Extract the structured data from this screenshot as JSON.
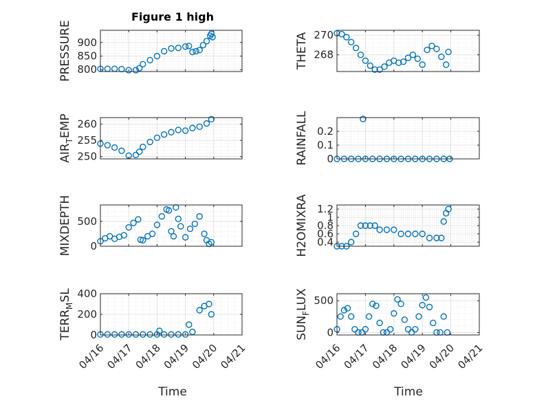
{
  "chart_data": [
    {
      "type": "scatter",
      "title": "Figure 1 high",
      "ylabel": "PRESSURE",
      "ylabel_parts": [
        {
          "t": "PRESSURE"
        }
      ],
      "yticks": [
        "800",
        "850",
        "900"
      ],
      "ytick_values": [
        800,
        850,
        900
      ],
      "ylim": [
        793,
        945
      ],
      "color": "#0072BD",
      "x": [
        "04/16 00:00",
        "04/16 06:00",
        "04/16 12:00",
        "04/16 18:00",
        "04/17 00:00",
        "04/17 06:00",
        "04/17 09:00",
        "04/17 12:00",
        "04/17 18:00",
        "04/18 00:00",
        "04/18 06:00",
        "04/18 12:00",
        "04/18 18:00",
        "04/19 00:00",
        "04/19 03:00",
        "04/19 06:00",
        "04/19 09:00",
        "04/19 12:00",
        "04/19 15:00",
        "04/19 18:00",
        "04/19 21:00",
        "04/19 22:00",
        "04/19 23:00"
      ],
      "y": [
        803,
        803,
        803,
        802,
        798,
        798,
        805,
        820,
        835,
        850,
        868,
        878,
        880,
        885,
        887,
        865,
        868,
        872,
        890,
        905,
        925,
        932,
        920
      ]
    },
    {
      "type": "scatter",
      "title": "",
      "ylabel": "THETA",
      "ylabel_parts": [
        {
          "t": "THETA"
        }
      ],
      "yticks": [
        "268",
        "270"
      ],
      "ytick_values": [
        268,
        270
      ],
      "ylim": [
        266.3,
        270.5
      ],
      "color": "#0072BD",
      "x": [
        "04/16 00:00",
        "04/16 04:00",
        "04/16 08:00",
        "04/16 12:00",
        "04/16 16:00",
        "04/16 20:00",
        "04/17 00:00",
        "04/17 04:00",
        "04/17 08:00",
        "04/17 12:00",
        "04/17 16:00",
        "04/17 20:00",
        "04/18 00:00",
        "04/18 04:00",
        "04/18 08:00",
        "04/18 12:00",
        "04/18 16:00",
        "04/18 20:00",
        "04/19 00:00",
        "04/19 04:00",
        "04/19 08:00",
        "04/19 12:00",
        "04/19 16:00",
        "04/19 20:00",
        "04/19 22:00"
      ],
      "y": [
        270.2,
        270.1,
        269.8,
        269.3,
        268.7,
        268.0,
        267.4,
        266.9,
        266.5,
        266.5,
        266.8,
        267.2,
        267.4,
        267.2,
        267.3,
        267.7,
        268.0,
        267.6,
        267.0,
        268.5,
        268.9,
        268.6,
        267.8,
        267.0,
        268.3
      ]
    },
    {
      "type": "scatter",
      "title": "",
      "ylabel": "AIR_TEMP",
      "ylabel_parts": [
        {
          "t": "AIR"
        },
        {
          "t": "T",
          "sub": true
        },
        {
          "t": "EMP"
        }
      ],
      "yticks": [
        "250",
        "255",
        "260"
      ],
      "ytick_values": [
        250,
        255,
        260
      ],
      "ylim": [
        249.3,
        262
      ],
      "color": "#0072BD",
      "x": [
        "04/16 00:00",
        "04/16 06:00",
        "04/16 12:00",
        "04/16 18:00",
        "04/17 00:00",
        "04/17 06:00",
        "04/17 09:00",
        "04/17 12:00",
        "04/17 18:00",
        "04/18 00:00",
        "04/18 06:00",
        "04/18 12:00",
        "04/18 18:00",
        "04/19 00:00",
        "04/19 06:00",
        "04/19 12:00",
        "04/19 18:00",
        "04/19 22:00"
      ],
      "y": [
        254,
        253.5,
        252.8,
        251.8,
        250.3,
        250.5,
        251.5,
        253,
        254.5,
        255.8,
        256.8,
        257.5,
        258.2,
        258,
        258.8,
        259.2,
        260.2,
        261.5
      ]
    },
    {
      "type": "scatter",
      "title": "",
      "ylabel": "RAINFALL",
      "ylabel_parts": [
        {
          "t": "RAINFALL"
        }
      ],
      "yticks": [
        "0",
        "0.1",
        "0.2"
      ],
      "ytick_values": [
        0,
        0.1,
        0.2
      ],
      "ylim": [
        0,
        0.3
      ],
      "color": "#0072BD",
      "x": [
        "04/16 00:00",
        "04/16 06:00",
        "04/16 12:00",
        "04/16 18:00",
        "04/17 00:00",
        "04/17 06:00",
        "04/17 12:00",
        "04/17 18:00",
        "04/18 00:00",
        "04/18 06:00",
        "04/18 12:00",
        "04/18 18:00",
        "04/19 00:00",
        "04/19 06:00",
        "04/19 12:00",
        "04/19 18:00",
        "04/19 23:00",
        "04/16 22:00"
      ],
      "y": [
        0,
        0,
        0,
        0,
        0,
        0,
        0,
        0,
        0,
        0,
        0,
        0,
        0,
        0,
        0,
        0,
        0,
        0.29
      ]
    },
    {
      "type": "scatter",
      "title": "",
      "ylabel": "MIXDEPTH",
      "ylabel_parts": [
        {
          "t": "MIXDEPTH"
        }
      ],
      "yticks": [
        "0",
        "500"
      ],
      "ytick_values": [
        0,
        500
      ],
      "ylim": [
        0,
        830
      ],
      "color": "#0072BD",
      "x": [
        "04/16 00:00",
        "04/16 04:00",
        "04/16 08:00",
        "04/16 12:00",
        "04/16 16:00",
        "04/16 20:00",
        "04/17 00:00",
        "04/17 04:00",
        "04/17 08:00",
        "04/17 10:00",
        "04/17 12:00",
        "04/17 16:00",
        "04/17 20:00",
        "04/18 00:00",
        "04/18 04:00",
        "04/18 08:00",
        "04/18 10:00",
        "04/18 12:00",
        "04/18 14:00",
        "04/18 16:00",
        "04/18 18:00",
        "04/18 20:00",
        "04/19 00:00",
        "04/19 04:00",
        "04/19 08:00",
        "04/19 12:00",
        "04/19 16:00",
        "04/19 18:00",
        "04/19 20:00",
        "04/19 22:00"
      ],
      "y": [
        100,
        160,
        200,
        150,
        190,
        220,
        380,
        470,
        540,
        130,
        120,
        200,
        250,
        430,
        600,
        740,
        720,
        300,
        200,
        780,
        550,
        400,
        180,
        350,
        450,
        600,
        250,
        120,
        50,
        80
      ]
    },
    {
      "type": "scatter",
      "title": "",
      "ylabel": "H2OMIXRA",
      "ylabel_parts": [
        {
          "t": "H2OMIXRA"
        }
      ],
      "yticks": [
        "0.4",
        "0.6",
        "0.8",
        "1",
        "1.2"
      ],
      "ytick_values": [
        0.4,
        0.6,
        0.8,
        1,
        1.2
      ],
      "ylim": [
        0.3,
        1.3
      ],
      "color": "#0072BD",
      "x": [
        "04/16 00:00",
        "04/16 04:00",
        "04/16 08:00",
        "04/16 12:00",
        "04/16 16:00",
        "04/16 20:00",
        "04/17 00:00",
        "04/17 04:00",
        "04/17 08:00",
        "04/17 12:00",
        "04/17 18:00",
        "04/18 00:00",
        "04/18 06:00",
        "04/18 12:00",
        "04/18 18:00",
        "04/19 00:00",
        "04/19 06:00",
        "04/19 12:00",
        "04/19 16:00",
        "04/19 18:00",
        "04/19 20:00",
        "04/19 22:00"
      ],
      "y": [
        0.3,
        0.3,
        0.3,
        0.4,
        0.6,
        0.8,
        0.8,
        0.8,
        0.8,
        0.7,
        0.7,
        0.7,
        0.6,
        0.6,
        0.6,
        0.6,
        0.5,
        0.5,
        0.5,
        0.9,
        1.1,
        1.2
      ]
    },
    {
      "type": "scatter",
      "title": "",
      "ylabel": "TERR_MSL",
      "ylabel_parts": [
        {
          "t": "TERR"
        },
        {
          "t": "M",
          "sub": true
        },
        {
          "t": "SL"
        }
      ],
      "yticks": [
        "0",
        "200",
        "400"
      ],
      "ytick_values": [
        0,
        200,
        400
      ],
      "ylim": [
        0,
        400
      ],
      "color": "#0072BD",
      "x": [
        "04/16 00:00",
        "04/16 06:00",
        "04/16 12:00",
        "04/16 18:00",
        "04/17 00:00",
        "04/17 06:00",
        "04/17 12:00",
        "04/17 18:00",
        "04/18 00:00",
        "04/18 06:00",
        "04/18 12:00",
        "04/18 18:00",
        "04/19 00:00",
        "04/19 06:00",
        "04/19 12:00",
        "04/19 16:00",
        "04/19 20:00",
        "04/19 22:00",
        "04/18 02:00",
        "04/19 03:00"
      ],
      "y": [
        5,
        5,
        5,
        5,
        5,
        5,
        5,
        5,
        5,
        5,
        5,
        5,
        5,
        30,
        240,
        280,
        300,
        200,
        40,
        100
      ]
    },
    {
      "type": "scatter",
      "title": "",
      "ylabel": "SUN_FLUX",
      "ylabel_parts": [
        {
          "t": "SUN"
        },
        {
          "t": "F",
          "sub": true
        },
        {
          "t": "LUX"
        }
      ],
      "yticks": [
        "0",
        "500"
      ],
      "ytick_values": [
        0,
        500
      ],
      "ylim": [
        -40,
        610
      ],
      "color": "#0072BD",
      "x": [
        "04/16 00:00",
        "04/16 03:00",
        "04/16 06:00",
        "04/16 09:00",
        "04/16 12:00",
        "04/16 15:00",
        "04/16 18:00",
        "04/16 21:00",
        "04/17 00:00",
        "04/17 03:00",
        "04/17 06:00",
        "04/17 09:00",
        "04/17 12:00",
        "04/17 15:00",
        "04/17 18:00",
        "04/17 21:00",
        "04/18 00:00",
        "04/18 03:00",
        "04/18 06:00",
        "04/18 09:00",
        "04/18 12:00",
        "04/18 15:00",
        "04/18 18:00",
        "04/18 21:00",
        "04/19 00:00",
        "04/19 03:00",
        "04/19 06:00",
        "04/19 09:00",
        "04/19 12:00",
        "04/19 15:00",
        "04/19 18:00",
        "04/19 21:00"
      ],
      "y": [
        50,
        250,
        350,
        380,
        250,
        50,
        0,
        0,
        50,
        250,
        450,
        420,
        150,
        0,
        0,
        50,
        300,
        520,
        450,
        200,
        50,
        0,
        50,
        250,
        430,
        550,
        400,
        150,
        0,
        0,
        250,
        0
      ]
    }
  ],
  "xaxis": {
    "ticks": [
      "04/16",
      "04/17",
      "04/18",
      "04/19",
      "04/20",
      "04/21"
    ],
    "label": "Time"
  }
}
